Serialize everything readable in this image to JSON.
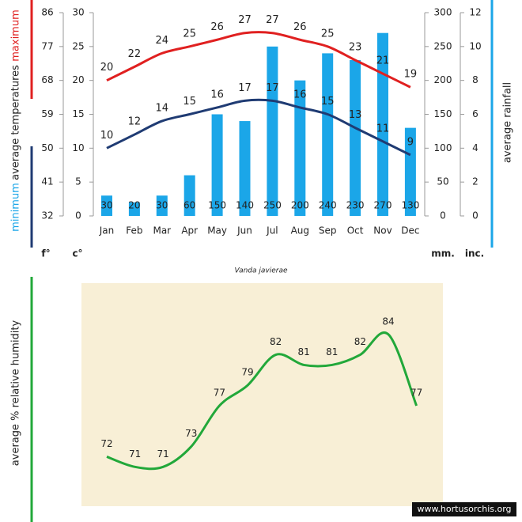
{
  "chart_data": [
    {
      "type": "combo",
      "title": "Vanda javierae",
      "categories": [
        "Jan",
        "Feb",
        "Mar",
        "Apr",
        "May",
        "Jun",
        "Jul",
        "Aug",
        "Sep",
        "Oct",
        "Nov",
        "Dec"
      ],
      "ylabel": "average temperatures",
      "y2label": "average rainfall",
      "series": [
        {
          "name": "maximum",
          "color": "#e02020",
          "axis": "y",
          "values": [
            20,
            22,
            24,
            25,
            26,
            27,
            27,
            26,
            25,
            23,
            21,
            19
          ]
        },
        {
          "name": "minimum",
          "color": "#1f3b73",
          "axis": "y",
          "values": [
            10,
            12,
            14,
            15,
            16,
            17,
            17,
            16,
            15,
            13,
            11,
            9
          ]
        },
        {
          "color": "#1ba6e8",
          "axis": "y2",
          "values": [
            30,
            20,
            30,
            60,
            150,
            140,
            250,
            200,
            240,
            230,
            270,
            130
          ]
        }
      ],
      "ylim": [
        0,
        30
      ],
      "yticks": [
        0,
        5,
        10,
        15,
        20,
        25,
        30
      ],
      "yunit": "c°",
      "yflim": [
        32,
        86
      ],
      "yfticks": [
        32,
        41,
        50,
        59,
        68,
        77,
        86
      ],
      "yfunit": "f°",
      "y2lim": [
        0,
        300
      ],
      "y2ticks": [
        0,
        50,
        100,
        150,
        200,
        250,
        300
      ],
      "y2unit": "mm.",
      "y3lim": [
        0,
        12
      ],
      "y3ticks": [
        0,
        2,
        4,
        6,
        8,
        10,
        12
      ],
      "y3unit": "inc."
    },
    {
      "type": "line",
      "ylabel": "average % relative humidity",
      "ylim": [
        68,
        86
      ],
      "series": [
        {
          "color": "#22a83a",
          "values": [
            72,
            71,
            71,
            73,
            77,
            79,
            82,
            81,
            81,
            82,
            84,
            77
          ]
        }
      ]
    }
  ],
  "credit": "www.hortusorchis.org"
}
